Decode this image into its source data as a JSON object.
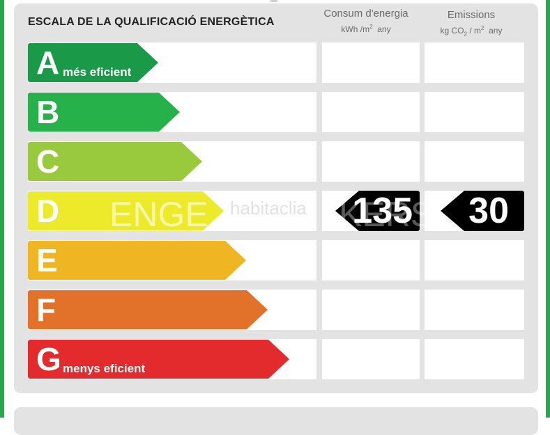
{
  "title": "ESCALA DE LA QUALIFICACIÓ ENERGÈTICA",
  "columns": {
    "consumption": {
      "label": "Consum d'energia",
      "unit_prefix": "kWh /m",
      "unit_sup": "2",
      "unit_suffix": "any"
    },
    "emissions": {
      "label": "Emissions",
      "unit_prefix": "kg CO",
      "unit_sub": "2",
      "unit_mid": "/ m",
      "unit_sup": "2",
      "unit_suffix": "any"
    }
  },
  "ratings": [
    {
      "letter": "A",
      "sublabel": "més eficient",
      "color": "#1a9a48"
    },
    {
      "letter": "B",
      "sublabel": "",
      "color": "#27b14a"
    },
    {
      "letter": "C",
      "sublabel": "",
      "color": "#99c93d"
    },
    {
      "letter": "D",
      "sublabel": "",
      "color": "#ecea2a"
    },
    {
      "letter": "E",
      "sublabel": "",
      "color": "#efb523"
    },
    {
      "letter": "F",
      "sublabel": "",
      "color": "#e2722a"
    },
    {
      "letter": "G",
      "sublabel": "menys eficient",
      "color": "#e32b2d"
    }
  ],
  "result": {
    "rating": "D",
    "consumption_value": "135",
    "emissions_value": "30"
  },
  "watermarks": [
    "ENGE",
    "habitaclia",
    "KERS"
  ]
}
